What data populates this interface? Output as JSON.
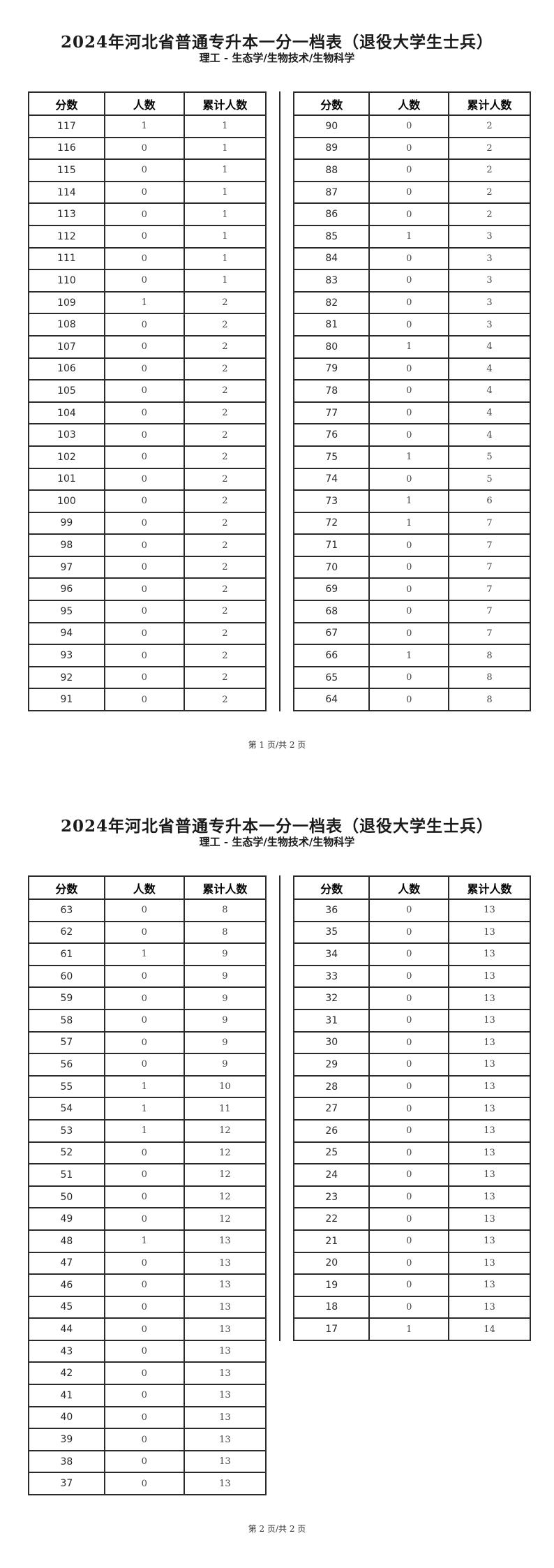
{
  "columns": [
    "分数",
    "人数",
    "累计人数"
  ],
  "colors": {
    "border": "#2b2b2b",
    "text_primary": "#1a1a1a",
    "text_secondary": "#454545",
    "background": "#ffffff"
  },
  "pages": [
    {
      "title": "2024年河北省普通专升本一分一档表（退役大学生士兵）",
      "subtitle": "理工 - 生态学/生物技术/生物科学",
      "footer": "第 1 页/共 2 页",
      "left_rows": [
        [
          117,
          1,
          1
        ],
        [
          116,
          0,
          1
        ],
        [
          115,
          0,
          1
        ],
        [
          114,
          0,
          1
        ],
        [
          113,
          0,
          1
        ],
        [
          112,
          0,
          1
        ],
        [
          111,
          0,
          1
        ],
        [
          110,
          0,
          1
        ],
        [
          109,
          1,
          2
        ],
        [
          108,
          0,
          2
        ],
        [
          107,
          0,
          2
        ],
        [
          106,
          0,
          2
        ],
        [
          105,
          0,
          2
        ],
        [
          104,
          0,
          2
        ],
        [
          103,
          0,
          2
        ],
        [
          102,
          0,
          2
        ],
        [
          101,
          0,
          2
        ],
        [
          100,
          0,
          2
        ],
        [
          99,
          0,
          2
        ],
        [
          98,
          0,
          2
        ],
        [
          97,
          0,
          2
        ],
        [
          96,
          0,
          2
        ],
        [
          95,
          0,
          2
        ],
        [
          94,
          0,
          2
        ],
        [
          93,
          0,
          2
        ],
        [
          92,
          0,
          2
        ],
        [
          91,
          0,
          2
        ]
      ],
      "right_rows": [
        [
          90,
          0,
          2
        ],
        [
          89,
          0,
          2
        ],
        [
          88,
          0,
          2
        ],
        [
          87,
          0,
          2
        ],
        [
          86,
          0,
          2
        ],
        [
          85,
          1,
          3
        ],
        [
          84,
          0,
          3
        ],
        [
          83,
          0,
          3
        ],
        [
          82,
          0,
          3
        ],
        [
          81,
          0,
          3
        ],
        [
          80,
          1,
          4
        ],
        [
          79,
          0,
          4
        ],
        [
          78,
          0,
          4
        ],
        [
          77,
          0,
          4
        ],
        [
          76,
          0,
          4
        ],
        [
          75,
          1,
          5
        ],
        [
          74,
          0,
          5
        ],
        [
          73,
          1,
          6
        ],
        [
          72,
          1,
          7
        ],
        [
          71,
          0,
          7
        ],
        [
          70,
          0,
          7
        ],
        [
          69,
          0,
          7
        ],
        [
          68,
          0,
          7
        ],
        [
          67,
          0,
          7
        ],
        [
          66,
          1,
          8
        ],
        [
          65,
          0,
          8
        ],
        [
          64,
          0,
          8
        ]
      ]
    },
    {
      "title": "2024年河北省普通专升本一分一档表（退役大学生士兵）",
      "subtitle": "理工 - 生态学/生物技术/生物科学",
      "footer": "第 2 页/共 2 页",
      "left_rows": [
        [
          63,
          0,
          8
        ],
        [
          62,
          0,
          8
        ],
        [
          61,
          1,
          9
        ],
        [
          60,
          0,
          9
        ],
        [
          59,
          0,
          9
        ],
        [
          58,
          0,
          9
        ],
        [
          57,
          0,
          9
        ],
        [
          56,
          0,
          9
        ],
        [
          55,
          1,
          10
        ],
        [
          54,
          1,
          11
        ],
        [
          53,
          1,
          12
        ],
        [
          52,
          0,
          12
        ],
        [
          51,
          0,
          12
        ],
        [
          50,
          0,
          12
        ],
        [
          49,
          0,
          12
        ],
        [
          48,
          1,
          13
        ],
        [
          47,
          0,
          13
        ],
        [
          46,
          0,
          13
        ],
        [
          45,
          0,
          13
        ],
        [
          44,
          0,
          13
        ],
        [
          43,
          0,
          13
        ],
        [
          42,
          0,
          13
        ],
        [
          41,
          0,
          13
        ],
        [
          40,
          0,
          13
        ],
        [
          39,
          0,
          13
        ],
        [
          38,
          0,
          13
        ],
        [
          37,
          0,
          13
        ]
      ],
      "right_rows": [
        [
          36,
          0,
          13
        ],
        [
          35,
          0,
          13
        ],
        [
          34,
          0,
          13
        ],
        [
          33,
          0,
          13
        ],
        [
          32,
          0,
          13
        ],
        [
          31,
          0,
          13
        ],
        [
          30,
          0,
          13
        ],
        [
          29,
          0,
          13
        ],
        [
          28,
          0,
          13
        ],
        [
          27,
          0,
          13
        ],
        [
          26,
          0,
          13
        ],
        [
          25,
          0,
          13
        ],
        [
          24,
          0,
          13
        ],
        [
          23,
          0,
          13
        ],
        [
          22,
          0,
          13
        ],
        [
          21,
          0,
          13
        ],
        [
          20,
          0,
          13
        ],
        [
          19,
          0,
          13
        ],
        [
          18,
          0,
          13
        ],
        [
          17,
          1,
          14
        ]
      ]
    }
  ]
}
